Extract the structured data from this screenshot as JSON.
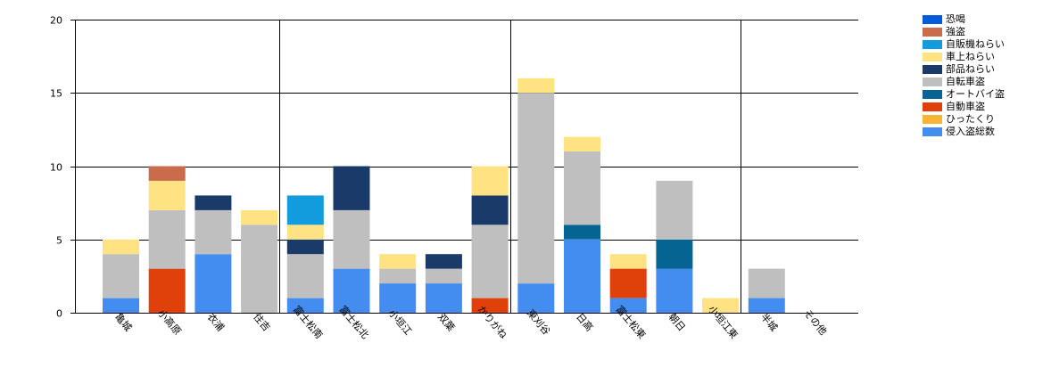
{
  "chart_data": {
    "type": "bar",
    "stacked": true,
    "categories": [
      "亀城",
      "小高原",
      "衣浦",
      "住吉",
      "富士松南",
      "富士松北",
      "小垣江",
      "双葉",
      "かりがね",
      "東刈谷",
      "日高",
      "富士松東",
      "朝日",
      "小垣江東",
      "半城",
      "その他"
    ],
    "ylim": [
      0,
      20
    ],
    "yticks": [
      0,
      5,
      10,
      15,
      20
    ],
    "grid": true,
    "legend_position": "right",
    "series": [
      {
        "name": "侵入盗総数",
        "color": "#448DF0",
        "values": [
          1,
          0,
          4,
          0,
          1,
          3,
          2,
          2,
          0,
          2,
          5,
          1,
          3,
          0,
          1,
          0
        ]
      },
      {
        "name": "ひったくり",
        "color": "#F7B535",
        "values": [
          0,
          0,
          0,
          0,
          0,
          0,
          0,
          0,
          0,
          0,
          0,
          0,
          0,
          0,
          0,
          0
        ]
      },
      {
        "name": "自動車盗",
        "color": "#E0400A",
        "values": [
          0,
          3,
          0,
          0,
          0,
          0,
          0,
          0,
          1,
          0,
          0,
          2,
          0,
          0,
          0,
          0
        ]
      },
      {
        "name": "オートバイ盗",
        "color": "#056492",
        "values": [
          0,
          0,
          0,
          0,
          0,
          0,
          0,
          0,
          0,
          0,
          1,
          0,
          2,
          0,
          0,
          0
        ]
      },
      {
        "name": "自転車盗",
        "color": "#BFBFBF",
        "values": [
          3,
          4,
          3,
          6,
          3,
          4,
          1,
          1,
          5,
          13,
          5,
          0,
          4,
          0,
          2,
          0
        ]
      },
      {
        "name": "部品ねらい",
        "color": "#1A3B69",
        "values": [
          0,
          0,
          1,
          0,
          1,
          3,
          0,
          1,
          2,
          0,
          0,
          0,
          0,
          0,
          0,
          0
        ]
      },
      {
        "name": "車上ねらい",
        "color": "#FFE382",
        "values": [
          1,
          2,
          0,
          1,
          1,
          0,
          1,
          0,
          2,
          1,
          1,
          1,
          0,
          1,
          0,
          0
        ]
      },
      {
        "name": "自販機ねらい",
        "color": "#129CDD",
        "values": [
          0,
          0,
          0,
          0,
          2,
          0,
          0,
          0,
          0,
          0,
          0,
          0,
          0,
          0,
          0,
          0
        ]
      },
      {
        "name": "強盗",
        "color": "#CA6B4B",
        "values": [
          0,
          1,
          0,
          0,
          0,
          0,
          0,
          0,
          0,
          0,
          0,
          0,
          0,
          0,
          0,
          0
        ]
      },
      {
        "name": "恐喝",
        "color": "#005CDB",
        "values": [
          0,
          0,
          0,
          0,
          0,
          0,
          0,
          0,
          0,
          0,
          0,
          0,
          0,
          0,
          0,
          0
        ]
      }
    ]
  }
}
